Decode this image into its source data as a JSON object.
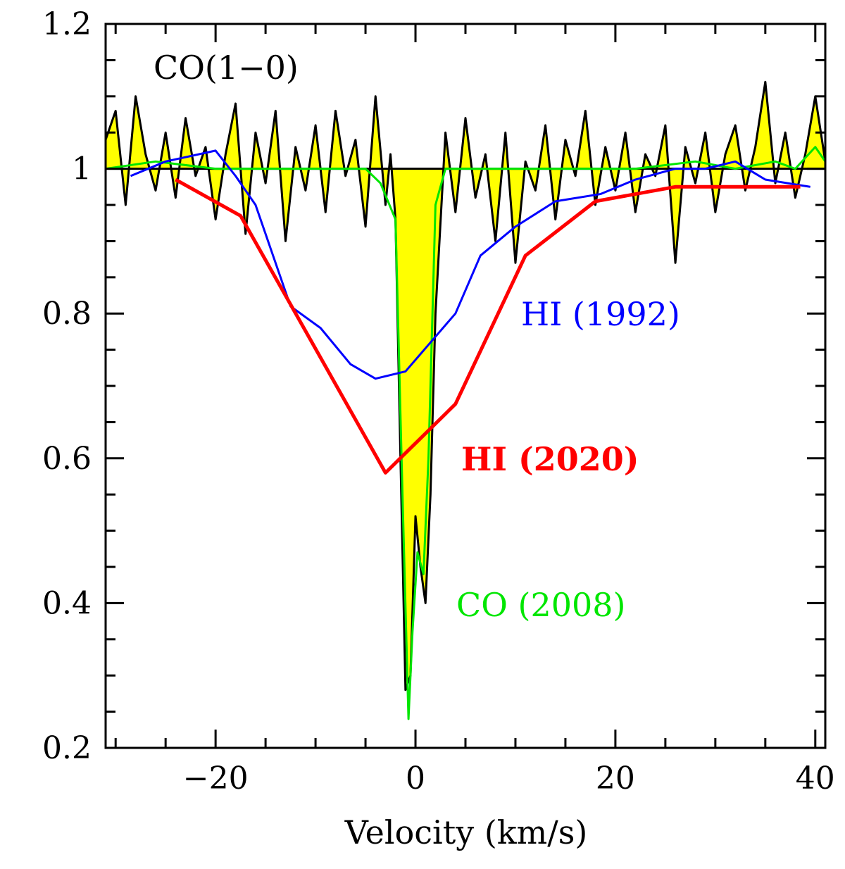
{
  "chart_data": {
    "type": "line",
    "title": "",
    "xlabel": "Velocity (km/s)",
    "ylabel": "",
    "xlim": [
      -31,
      41
    ],
    "ylim": [
      0.2,
      1.2
    ],
    "xticks": [
      -20,
      0,
      20,
      40
    ],
    "xtick_labels": [
      "−20",
      "0",
      "20",
      "40"
    ],
    "yticks": [
      0.2,
      0.4,
      0.6,
      0.8,
      1.0,
      1.2
    ],
    "ytick_labels": [
      "0.2",
      "0.4",
      "0.6",
      "0.8",
      "1",
      "1.2"
    ],
    "baseline": 1.0,
    "annotations": {
      "panel_label": "CO(1−0)",
      "hi1992": "HI (1992)",
      "hi2020": "HI (2020)",
      "co2008": "CO (2008)"
    },
    "colors": {
      "co10": "#000000",
      "fill": "#ffff00",
      "hi1992": "#0000ff",
      "hi2020": "#ff0000",
      "co2008": "#00e600"
    },
    "series": [
      {
        "name": "HI (1992)",
        "x": [
          -28.5,
          -25,
          -20,
          -18,
          -16,
          -14.5,
          -12.5,
          -9.5,
          -6.5,
          -4,
          -1,
          1.5,
          4,
          6.5,
          10,
          14,
          18.5,
          22,
          26,
          29,
          32,
          35,
          39.5
        ],
        "y": [
          0.99,
          1.01,
          1.025,
          0.99,
          0.95,
          0.89,
          0.81,
          0.78,
          0.73,
          0.71,
          0.72,
          0.76,
          0.8,
          0.88,
          0.92,
          0.955,
          0.965,
          0.985,
          1.0,
          1.0,
          1.01,
          0.985,
          0.975
        ]
      },
      {
        "name": "HI (2020)",
        "x": [
          -24,
          -17.5,
          -3,
          4,
          11,
          18,
          26,
          38.5
        ],
        "y": [
          0.985,
          0.935,
          0.58,
          0.675,
          0.88,
          0.955,
          0.975,
          0.975
        ]
      },
      {
        "name": "CO (2008)",
        "x": [
          -31,
          -26,
          -20,
          -16,
          -12,
          -8,
          -5,
          -3.5,
          -2,
          -1.3,
          -0.7,
          -0.3,
          0.2,
          0.8,
          1.3,
          2.0,
          3.0,
          5,
          10,
          16,
          22,
          28,
          32,
          36,
          38,
          40,
          41
        ],
        "y": [
          1.0,
          1.01,
          1.0,
          1.0,
          1.0,
          1.0,
          1.0,
          0.98,
          0.93,
          0.55,
          0.24,
          0.36,
          0.47,
          0.44,
          0.6,
          0.95,
          1.0,
          1.0,
          1.0,
          1.0,
          1.0,
          1.01,
          1.0,
          1.01,
          1.0,
          1.03,
          1.01
        ]
      },
      {
        "name": "CO(1−0)",
        "x": [
          -31,
          -30,
          -29,
          -28,
          -27,
          -26,
          -25,
          -24,
          -23,
          -22,
          -21,
          -20,
          -19,
          -18,
          -17,
          -16,
          -15,
          -14,
          -13,
          -12,
          -11,
          -10,
          -9,
          -8,
          -7,
          -6,
          -5,
          -4,
          -3,
          -2.5,
          -2,
          -1.5,
          -1,
          -0.5,
          0,
          0.5,
          1,
          1.5,
          2,
          3,
          4,
          5,
          6,
          7,
          8,
          9,
          10,
          11,
          12,
          13,
          14,
          15,
          16,
          17,
          18,
          19,
          20,
          21,
          22,
          23,
          24,
          25,
          26,
          27,
          28,
          29,
          30,
          31,
          32,
          33,
          34,
          35,
          36,
          37,
          38,
          39,
          40,
          41
        ],
        "y": [
          1.04,
          1.08,
          0.95,
          1.1,
          1.02,
          0.97,
          1.05,
          0.96,
          1.07,
          0.99,
          1.03,
          0.93,
          1.02,
          1.09,
          0.91,
          1.05,
          0.98,
          1.08,
          0.9,
          1.03,
          0.97,
          1.06,
          0.94,
          1.08,
          0.99,
          1.04,
          0.92,
          1.1,
          0.95,
          1.02,
          0.93,
          0.6,
          0.28,
          0.3,
          0.52,
          0.45,
          0.4,
          0.55,
          0.8,
          1.05,
          0.94,
          1.07,
          0.96,
          1.02,
          0.9,
          1.05,
          0.87,
          1.01,
          0.97,
          1.06,
          0.93,
          1.04,
          0.99,
          1.08,
          0.95,
          1.03,
          0.97,
          1.05,
          0.94,
          1.02,
          0.99,
          1.06,
          0.87,
          1.03,
          0.98,
          1.05,
          0.94,
          1.02,
          1.06,
          0.97,
          1.03,
          1.12,
          0.98,
          1.05,
          0.96,
          1.02,
          1.1,
          1.01
        ]
      }
    ]
  }
}
